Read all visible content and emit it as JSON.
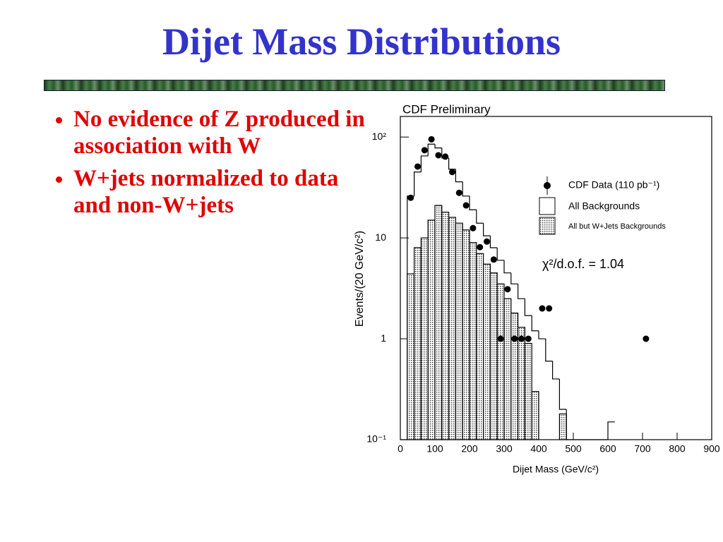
{
  "title": "Dijet Mass Distributions",
  "bullets": [
    "No evidence of Z produced in association with W",
    "W+jets normalized to data and non-W+jets"
  ],
  "chart_data": {
    "type": "histogram",
    "title": "CDF Preliminary",
    "x_label": "Dijet Mass (GeV/c²)",
    "y_label": "Events/(20 GeV/c²)",
    "log_y": true,
    "xlim": [
      0,
      900
    ],
    "ylim": [
      0.1,
      160
    ],
    "xticks": [
      0,
      100,
      200,
      300,
      400,
      500,
      600,
      700,
      800,
      900
    ],
    "yticks": [
      {
        "value": 0.1,
        "label": "10⁻¹"
      },
      1,
      10,
      {
        "value": 100,
        "label": "10²"
      }
    ],
    "bins": [
      0,
      20,
      40,
      60,
      80,
      100,
      120,
      140,
      160,
      180,
      200,
      220,
      240,
      260,
      280,
      300,
      320,
      340,
      360,
      380,
      400,
      420,
      440,
      460,
      480,
      500,
      520,
      540,
      560,
      580,
      600,
      620
    ],
    "series": [
      {
        "name": "All Backgrounds",
        "color": "#000000",
        "fill": "none",
        "values": [
          0,
          26,
          45,
          65,
          85,
          78,
          62,
          48,
          36,
          26,
          19,
          14,
          10.5,
          8,
          6,
          4.5,
          3.5,
          2.5,
          1.7,
          1.2,
          1.0,
          0.6,
          0.4,
          0.2,
          0,
          0,
          0,
          0,
          0,
          0,
          0.15
        ]
      },
      {
        "name": "All but W+Jets Backgrounds",
        "color": "#000000",
        "fill": "dotted",
        "values": [
          0,
          4.4,
          8,
          10,
          15,
          21,
          18,
          16,
          14,
          12,
          9,
          7,
          5.5,
          4.5,
          3.5,
          2.5,
          1.8,
          1.3,
          0.9,
          0.3,
          0,
          0,
          0,
          0.18,
          0,
          0,
          0,
          0,
          0,
          0,
          0
        ]
      }
    ],
    "points": {
      "name": "CDF Data (110 pb⁻¹)",
      "color": "#000000",
      "x": [
        30,
        50,
        70,
        90,
        110,
        130,
        150,
        170,
        190,
        210,
        230,
        250,
        270,
        290,
        310,
        330,
        350,
        370,
        410,
        430,
        710
      ],
      "values": [
        25,
        51,
        74,
        95,
        66,
        64,
        45,
        28,
        21,
        12.5,
        8.1,
        9.2,
        6.1,
        1,
        3.1,
        1,
        1,
        1,
        2,
        2,
        1
      ]
    },
    "annotation": "χ²/d.o.f. = 1.04"
  }
}
